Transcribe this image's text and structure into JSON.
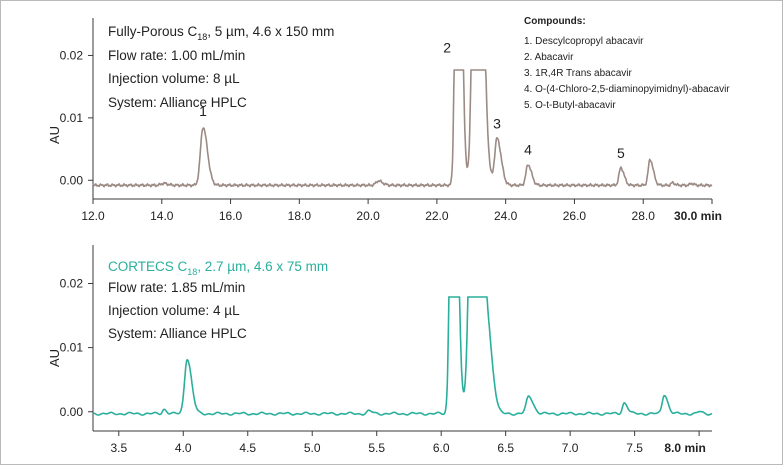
{
  "colors": {
    "top_trace": "#9c8a84",
    "bottom_trace": "#2aaf9c",
    "axis": "#3a3a3a",
    "text": "#222222",
    "frame": "#b9b9b9"
  },
  "compounds": {
    "heading": "Compounds:",
    "items": [
      "1. Descylcopropyl abacavir",
      "2. Abacavir",
      "3. 1R,4R Trans abacavir",
      "4. O-(4-Chloro-2,5-diaminopyimidnyl)-abacavir",
      "5. O-t-Butyl-abacavir"
    ]
  },
  "chart_data": [
    {
      "type": "line",
      "ylabel": "AU",
      "xlabel": "",
      "x_unit": "min",
      "xlim": [
        12.0,
        30.0
      ],
      "ylim": [
        -0.003,
        0.026
      ],
      "x_ticks": [
        12.0,
        14.0,
        16.0,
        18.0,
        20.0,
        22.0,
        24.0,
        26.0,
        28.0,
        30.0
      ],
      "x_tick_labels": [
        "12.0",
        "14.0",
        "16.0",
        "18.0",
        "20.0",
        "22.0",
        "24.0",
        "26.0",
        "28.0",
        "30.0 min"
      ],
      "y_ticks": [
        0.0,
        0.01,
        0.02
      ],
      "y_tick_labels": [
        "0.00",
        "0.01",
        "0.02"
      ],
      "annotation": {
        "column_prefix": "Fully-Porous C",
        "column_sub": "18",
        "column_suffix": ", 5 µm, 4.6 x 150 mm",
        "lines": [
          "Flow rate: 1.00 mL/min",
          "Injection volume: 8 µL",
          "System: Alliance HPLC"
        ]
      },
      "series": [
        {
          "color": "#9c8a84",
          "baseline": -0.0008,
          "peaks": [
            {
              "x": 14.05,
              "y": 0.0003,
              "w": 0.07
            },
            {
              "x": 15.2,
              "y": 0.0093,
              "w": 0.075
            },
            {
              "x": 20.3,
              "y": 0.0007,
              "w": 0.07
            },
            {
              "x": 22.6,
              "y": 0.08,
              "w": 0.06
            },
            {
              "x": 23.15,
              "y": 0.09,
              "w": 0.09
            },
            {
              "x": 23.75,
              "y": 0.0075,
              "w": 0.07
            },
            {
              "x": 24.65,
              "y": 0.0033,
              "w": 0.06
            },
            {
              "x": 27.35,
              "y": 0.0028,
              "w": 0.055
            },
            {
              "x": 28.2,
              "y": 0.0041,
              "w": 0.055
            },
            {
              "x": 28.85,
              "y": 0.0004,
              "w": 0.04
            },
            {
              "x": 29.4,
              "y": 0.0003,
              "w": 0.04
            }
          ],
          "peak_labels": [
            {
              "label": "1",
              "x": 15.2,
              "y": 0.0103
            },
            {
              "label": "2",
              "x": 22.3,
              "y": 0.0205
            },
            {
              "label": "3",
              "x": 23.75,
              "y": 0.0083
            },
            {
              "label": "4",
              "x": 24.65,
              "y": 0.0041
            },
            {
              "label": "5",
              "x": 27.35,
              "y": 0.0036
            }
          ]
        }
      ]
    },
    {
      "type": "line",
      "ylabel": "AU",
      "xlabel": "",
      "x_unit": "min",
      "xlim": [
        3.3,
        8.1
      ],
      "ylim": [
        -0.003,
        0.026
      ],
      "x_ticks": [
        3.5,
        4.0,
        4.5,
        5.0,
        5.5,
        6.0,
        6.5,
        7.0,
        7.5,
        8.0
      ],
      "x_tick_labels": [
        "3.5",
        "4.0",
        "4.5",
        "5.0",
        "5.5",
        "6.0",
        "6.5",
        "7.0",
        "7.5",
        "8.0 min"
      ],
      "y_ticks": [
        0.0,
        0.01,
        0.02
      ],
      "y_tick_labels": [
        "0.00",
        "0.01",
        "0.02"
      ],
      "annotation": {
        "column_prefix": "CORTECS C",
        "column_sub": "18",
        "column_suffix": ", 2.7 µm, 4.6 x 75 mm",
        "lines": [
          "Flow rate: 1.85 mL/min",
          "Injection volume: 4 µL",
          "System: Alliance HPLC"
        ]
      },
      "series": [
        {
          "color": "#2aaf9c",
          "baseline": -0.0003,
          "peaks": [
            {
              "x": 3.85,
              "y": 0.0007,
              "w": 0.012
            },
            {
              "x": 4.03,
              "y": 0.0086,
              "w": 0.02
            },
            {
              "x": 5.44,
              "y": 0.0004,
              "w": 0.015
            },
            {
              "x": 6.09,
              "y": 0.08,
              "w": 0.018
            },
            {
              "x": 6.26,
              "y": 0.09,
              "w": 0.03
            },
            {
              "x": 6.38,
              "y": 0.0063,
              "w": 0.02
            },
            {
              "x": 6.68,
              "y": 0.0027,
              "w": 0.02
            },
            {
              "x": 7.42,
              "y": 0.0017,
              "w": 0.015
            },
            {
              "x": 7.73,
              "y": 0.003,
              "w": 0.016
            },
            {
              "x": 8.0,
              "y": 0.0003,
              "w": 0.012
            }
          ],
          "peak_labels": []
        }
      ]
    }
  ]
}
